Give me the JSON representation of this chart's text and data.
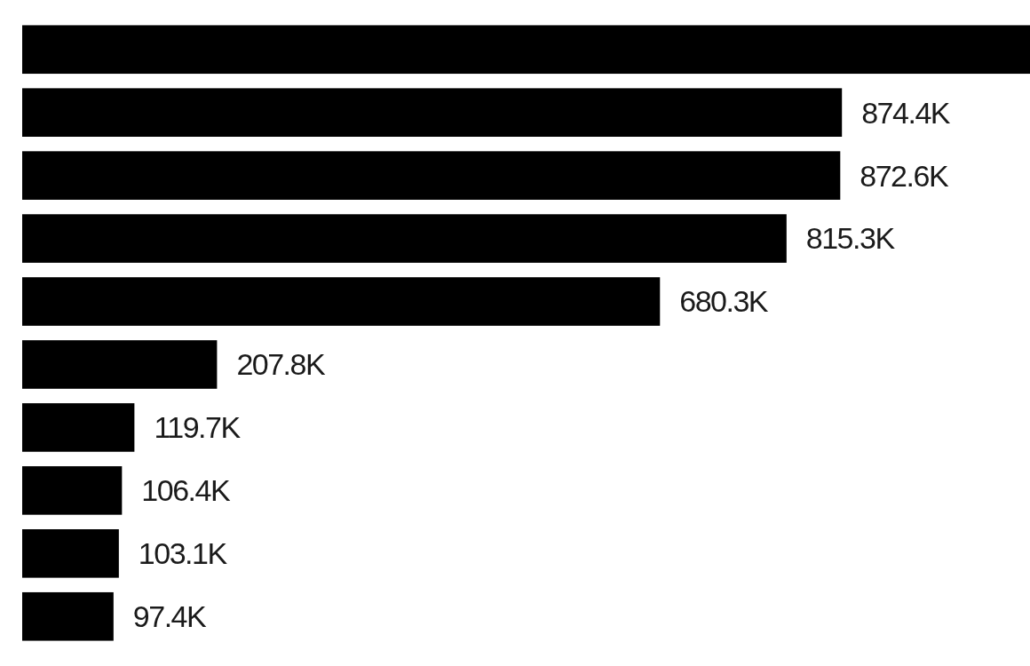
{
  "chart_data": {
    "type": "bar",
    "orientation": "horizontal",
    "categories": [
      null,
      null,
      null,
      null,
      null,
      null,
      null,
      null,
      null,
      null
    ],
    "values": [
      1075,
      874.4,
      872.6,
      815.3,
      680.3,
      207.8,
      119.7,
      106.4,
      103.1,
      97.4
    ],
    "value_labels": [
      null,
      "874.4K",
      "872.6K",
      "815.3K",
      "680.3K",
      "207.8K",
      "119.7K",
      "106.4K",
      "103.1K",
      "97.4K"
    ],
    "color": "#000000",
    "xlim": [
      0,
      1075
    ],
    "tick_labels": false
  }
}
